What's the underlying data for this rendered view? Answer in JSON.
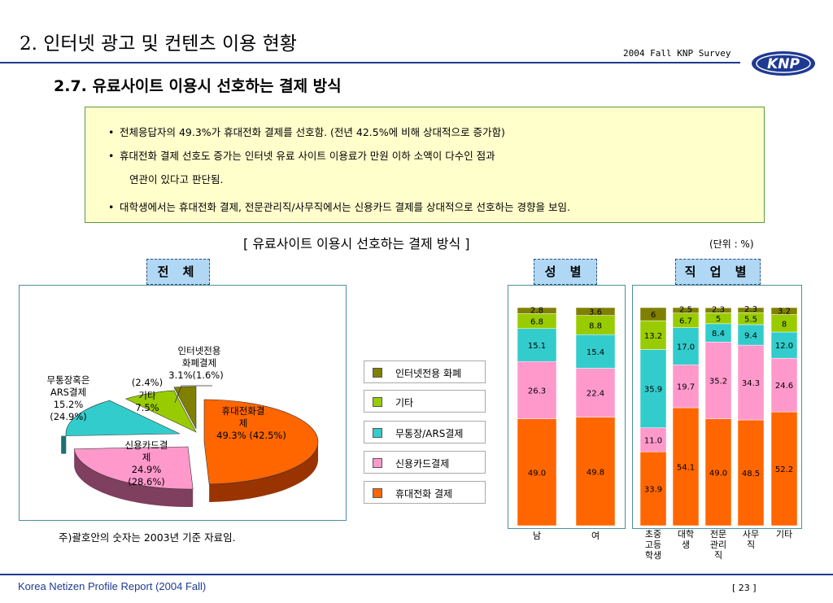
{
  "header": {
    "slide_title": "2. 인터넷 광고 및 컨텐츠 이용 현황",
    "survey_label": "2004 Fall KNP Survey",
    "logo_text": "KNP",
    "subtitle": "2.7.  유료사이트 이용시 선호하는 결제 방식"
  },
  "notes": {
    "bullet": "•",
    "line1": "전체응답자의 49.3%가 휴대전화 결제를 선호함. (전년 42.5%에 비해 상대적으로 증가함)",
    "line2": "휴대전화 결제 선호도 증가는 인터넷 유료 사이트 이용료가 만원 이하 소액이 다수인 점과",
    "line2b": "연관이 있다고 판단됨.",
    "line3": "대학생에서는 휴대전화 결제, 전문관리직/사무직에서는 신용카드 결제를 상대적으로 선호하는 경향을 보임."
  },
  "chart_header": {
    "title": "[ 유료사이트 이용시 선호하는 결제 방식 ]",
    "unit": "(단위 : %)"
  },
  "sections": {
    "total": "전 체",
    "gender": "성 별",
    "job": "직 업 별"
  },
  "pie_labels": {
    "internet": [
      "인터넷전용",
      "화폐결제",
      "3.1%"
    ],
    "internet_prev": "(1.6%)",
    "other": [
      "기타",
      "7.5%"
    ],
    "other_prev": "(2.4%)",
    "ars": [
      "무통장혹은",
      "ARS결제",
      "15.2%"
    ],
    "ars_prev": "(24.9%)",
    "credit": [
      "신용카드결",
      "제",
      "24.9%"
    ],
    "credit_prev": "(28.6%)",
    "mobile": [
      "휴대전화결",
      "제",
      "49.3%"
    ],
    "mobile_prev": "(42.5%)"
  },
  "legend": [
    "인터넷전용 화폐",
    "기타",
    "무통장/ARS결제",
    "신용카드결제",
    "휴대전화 결제"
  ],
  "footnote": "주)괄호안의 숫자는 2003년 기준 자료임.",
  "footer": {
    "report": "Korea Netizen Profile Report (2004 Fall)",
    "page": "[ 23 ]"
  },
  "colors": {
    "mobile": "#ff6600",
    "credit": "#ff99cc",
    "ars": "#33cccc",
    "other": "#99cc00",
    "internet": "#808000",
    "pie_mobile_side": "#993300",
    "pie_credit_side": "#7f3f5f",
    "pie_ars_side": "#1f6f6f"
  },
  "chart_data": [
    {
      "type": "pie",
      "categories": [
        "휴대전화 결제",
        "신용카드결제",
        "무통장/ARS결제",
        "기타",
        "인터넷전용 화폐"
      ],
      "values": [
        49.3,
        24.9,
        15.2,
        7.5,
        3.1
      ],
      "previous_values": [
        42.5,
        28.6,
        24.9,
        2.4,
        1.6
      ]
    },
    {
      "type": "bar",
      "stacked": true,
      "categories": [
        "남",
        "여"
      ],
      "series": [
        {
          "name": "휴대전화 결제",
          "values": [
            49.0,
            49.8
          ]
        },
        {
          "name": "신용카드결제",
          "values": [
            26.3,
            22.4
          ]
        },
        {
          "name": "무통장/ARS결제",
          "values": [
            15.1,
            15.4
          ]
        },
        {
          "name": "기타",
          "values": [
            6.8,
            8.8
          ]
        },
        {
          "name": "인터넷전용 화폐",
          "values": [
            2.8,
            3.6
          ]
        }
      ],
      "ylim": [
        0,
        100
      ]
    },
    {
      "type": "bar",
      "stacked": true,
      "categories": [
        "초중고등학생",
        "대학생",
        "전문관리직",
        "사무직",
        "기타"
      ],
      "category_lines": [
        [
          "초중",
          "고등",
          "학생"
        ],
        [
          "대학",
          "생"
        ],
        [
          "전문",
          "관리",
          "직"
        ],
        [
          "사무",
          "직"
        ],
        [
          "기타"
        ]
      ],
      "series": [
        {
          "name": "휴대전화 결제",
          "values": [
            33.9,
            54.1,
            49.0,
            48.5,
            52.2
          ]
        },
        {
          "name": "신용카드결제",
          "values": [
            11.0,
            19.7,
            35.2,
            34.3,
            24.6
          ]
        },
        {
          "name": "무통장/ARS결제",
          "values": [
            35.9,
            17.0,
            8.4,
            9.4,
            12.0
          ]
        },
        {
          "name": "기타",
          "values": [
            13.2,
            6.7,
            5,
            5.5,
            8
          ]
        },
        {
          "name": "인터넷전용 화폐",
          "values": [
            6.0,
            2.5,
            2.3,
            2.3,
            3.2
          ]
        }
      ],
      "ylim": [
        0,
        100
      ]
    }
  ]
}
